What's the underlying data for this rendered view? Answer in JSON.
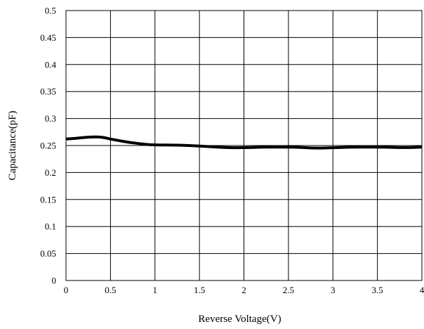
{
  "chart_data": {
    "type": "line",
    "title": "",
    "xlabel": "Reverse  Voltage(V)",
    "ylabel": "Capacitance(pF)",
    "xlim": [
      0,
      4
    ],
    "ylim": [
      0,
      0.5
    ],
    "x_ticks": [
      "0",
      "0.5",
      "1",
      "1.5",
      "2",
      "2.5",
      "3",
      "3.5",
      "4"
    ],
    "y_ticks": [
      "0",
      "0.05",
      "0.1",
      "0.15",
      "0.2",
      "0.25",
      "0.3",
      "0.35",
      "0.4",
      "0.45",
      "0.5"
    ],
    "grid": true,
    "legend": "none",
    "series": [
      {
        "color": "#000000",
        "points": [
          [
            0,
            0.262
          ],
          [
            0.1,
            0.263
          ],
          [
            0.2,
            0.265
          ],
          [
            0.3,
            0.266
          ],
          [
            0.38,
            0.266
          ],
          [
            0.45,
            0.264
          ],
          [
            0.5,
            0.262
          ],
          [
            0.6,
            0.259
          ],
          [
            0.7,
            0.256
          ],
          [
            0.8,
            0.254
          ],
          [
            0.9,
            0.252
          ],
          [
            1.0,
            0.251
          ],
          [
            1.2,
            0.251
          ],
          [
            1.4,
            0.25
          ],
          [
            1.6,
            0.248
          ],
          [
            1.8,
            0.246
          ],
          [
            2.0,
            0.246
          ],
          [
            2.2,
            0.247
          ],
          [
            2.4,
            0.247
          ],
          [
            2.6,
            0.247
          ],
          [
            2.8,
            0.245
          ],
          [
            3.0,
            0.246
          ],
          [
            3.2,
            0.247
          ],
          [
            3.4,
            0.247
          ],
          [
            3.6,
            0.247
          ],
          [
            3.8,
            0.246
          ],
          [
            4.0,
            0.247
          ]
        ]
      }
    ]
  }
}
